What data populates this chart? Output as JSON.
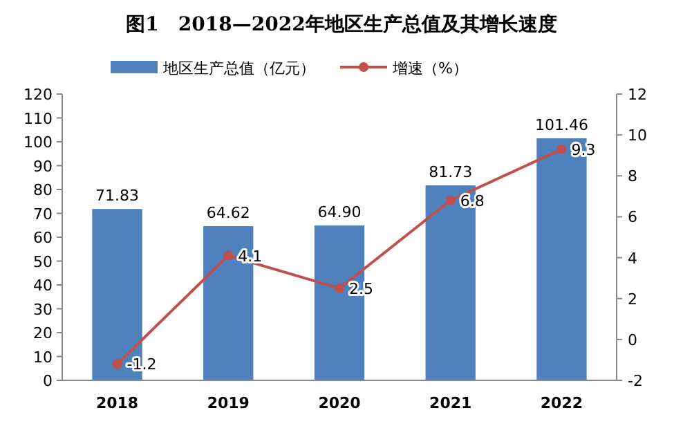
{
  "chart_data": {
    "type": "bar",
    "title": "图1　2018—2022年地区生产总值及其增长速度",
    "categories": [
      "2018",
      "2019",
      "2020",
      "2021",
      "2022"
    ],
    "series": [
      {
        "name": "地区生产总值（亿元）",
        "color": "#4f81bd",
        "values": [
          71.83,
          64.62,
          64.9,
          81.73,
          101.46
        ],
        "value_labels": [
          "71.83",
          "64.62",
          "64.90",
          "81.73",
          "101.46"
        ]
      },
      {
        "name": "增速（%）",
        "type": "line",
        "axis": "y2",
        "color": "#c0504d",
        "marker": "circle",
        "values": [
          -1.2,
          4.1,
          2.5,
          6.8,
          9.3
        ],
        "value_labels": [
          "-1.2",
          "4.1",
          "2.5",
          "6.8",
          "9.3"
        ]
      }
    ],
    "ylim": [
      0,
      120
    ],
    "yticks": [
      0,
      10,
      20,
      30,
      40,
      50,
      60,
      70,
      80,
      90,
      100,
      110,
      120
    ],
    "y2lim": [
      -2,
      12
    ],
    "y2ticks": [
      -2,
      0,
      2,
      4,
      6,
      8,
      10,
      12
    ],
    "legend": "top",
    "grid": false
  }
}
